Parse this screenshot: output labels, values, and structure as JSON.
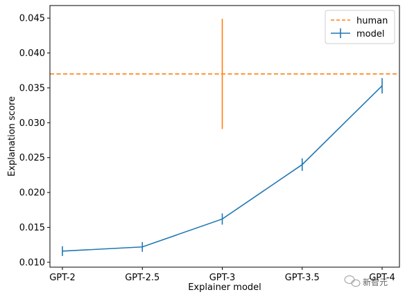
{
  "chart_data": {
    "type": "line",
    "xlabel": "Explainer model",
    "ylabel": "Explanation score",
    "categories": [
      "GPT-2",
      "GPT-2.5",
      "GPT-3",
      "GPT-3.5",
      "GPT-4"
    ],
    "ylim": [
      0.0093,
      0.0468
    ],
    "yticks": [
      0.01,
      0.015,
      0.02,
      0.025,
      0.03,
      0.035,
      0.04,
      0.045
    ],
    "ytick_labels": [
      "0.010",
      "0.015",
      "0.020",
      "0.025",
      "0.030",
      "0.035",
      "0.040",
      "0.045"
    ],
    "grid": false,
    "legend_position": "top-right",
    "series": [
      {
        "name": "model",
        "style": "solid line with error bars",
        "color": "#1f77b4",
        "values": [
          0.0116,
          0.0122,
          0.0162,
          0.024,
          0.0353
        ],
        "errors": [
          0.0007,
          0.0007,
          0.0008,
          0.0009,
          0.0011
        ]
      },
      {
        "name": "human",
        "style": "dashed horizontal line with error bar",
        "color": "#ff7f0e",
        "value": 0.037,
        "error_at_category": "GPT-3",
        "error_range": [
          0.0291,
          0.0449
        ]
      }
    ]
  },
  "watermark": "新智元"
}
